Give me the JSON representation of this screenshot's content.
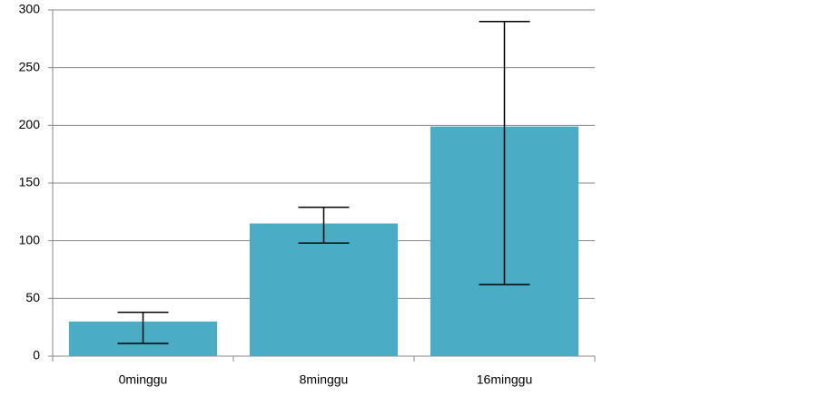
{
  "chart_data": {
    "type": "bar",
    "categories": [
      "0minggu",
      "8minggu",
      "16minggu"
    ],
    "values": [
      30,
      115,
      199
    ],
    "error_plus": [
      8,
      14,
      91
    ],
    "error_minus": [
      19,
      17,
      137
    ],
    "color": "#4bacc6",
    "ylim": [
      0,
      300
    ],
    "yticks": [
      0,
      50,
      100,
      150,
      200,
      250,
      300
    ],
    "grid": true
  }
}
